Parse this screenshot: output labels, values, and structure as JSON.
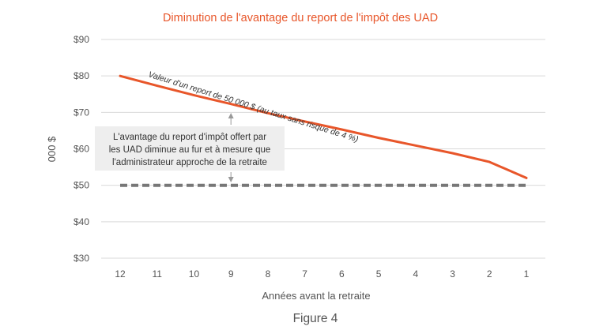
{
  "chart_data": {
    "type": "line",
    "title": "Diminution de l'avantage du report de l'impôt des UAD",
    "xlabel": "Années avant la retraite",
    "ylabel": "000 $",
    "categories": [
      "12",
      "11",
      "10",
      "9",
      "8",
      "7",
      "6",
      "5",
      "4",
      "3",
      "2",
      "1"
    ],
    "yticks": [
      "$30",
      "$40",
      "$50",
      "$60",
      "$70",
      "$80",
      "$90"
    ],
    "ylim": [
      30,
      90
    ],
    "grid": true,
    "series": [
      {
        "name": "Valeur d'un report de 50 000 $ (au taux sans risque de 4 %)",
        "values": [
          80.0,
          77.3,
          74.7,
          72.3,
          69.8,
          67.5,
          65.3,
          63.0,
          60.9,
          58.8,
          56.4,
          52.0
        ],
        "style": "solid",
        "color": "#e8562a"
      },
      {
        "name": "50 000 $",
        "values": [
          50,
          50,
          50,
          50,
          50,
          50,
          50,
          50,
          50,
          50,
          50,
          50
        ],
        "style": "dashed",
        "color": "#777777"
      }
    ],
    "annotation": {
      "lines": [
        "L'avantage du report d'impôt offert par",
        "les UAD diminue au fur et à mesure que",
        "l'administrateur approche de la retraite"
      ],
      "category": "9"
    },
    "caption": "Figure 4"
  }
}
